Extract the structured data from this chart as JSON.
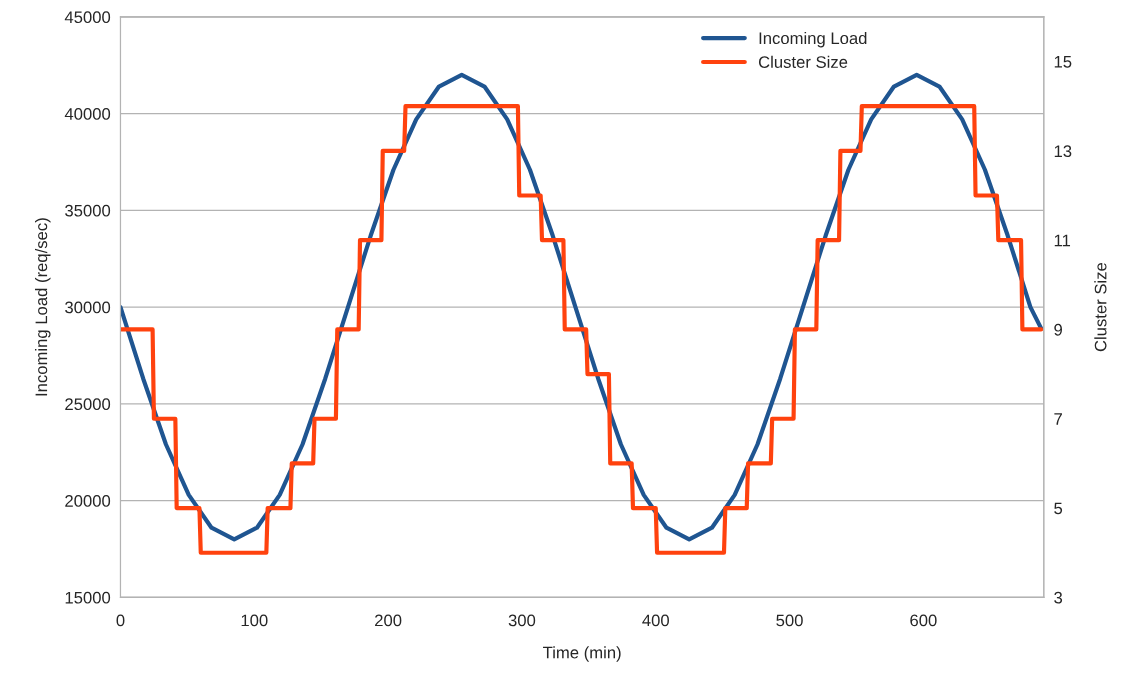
{
  "chart_data": {
    "type": "line",
    "xlabel": "Time (min)",
    "ylabel": "Incoming Load (req/sec)",
    "y2label": "Cluster Size",
    "xlim": [
      0,
      690
    ],
    "xticks": [
      0,
      100,
      200,
      300,
      400,
      500,
      600
    ],
    "ylim": [
      15000,
      45000
    ],
    "yticks": [
      15000,
      20000,
      25000,
      30000,
      35000,
      40000,
      45000
    ],
    "y2lim": [
      3,
      16
    ],
    "y2ticks": [
      3,
      5,
      7,
      9,
      11,
      13,
      15
    ],
    "grid": "y",
    "legend": "top",
    "line_style": "solid",
    "marker": "none",
    "series": [
      {
        "name": "Incoming Load",
        "color": "#1f5591",
        "x": [
          0,
          17,
          34,
          51,
          68,
          85,
          102,
          119,
          136,
          153,
          170,
          187,
          204,
          221,
          238,
          255,
          272,
          289,
          306,
          323,
          340,
          357,
          374,
          391,
          408,
          425,
          442,
          459,
          476,
          493,
          510,
          527,
          544,
          561,
          578,
          595,
          612,
          629,
          646,
          663,
          680,
          688
        ],
        "values": [
          30000,
          26300,
          22900,
          20300,
          18600,
          18000,
          18600,
          20300,
          22900,
          26300,
          30000,
          33700,
          37100,
          39700,
          41400,
          42000,
          41400,
          39700,
          37100,
          33700,
          30000,
          26300,
          22900,
          20300,
          18600,
          18000,
          18600,
          20300,
          22900,
          26300,
          30000,
          33700,
          37100,
          39700,
          41400,
          42000,
          41400,
          39700,
          37100,
          33700,
          30000,
          28900
        ]
      },
      {
        "name": "Cluster Size",
        "axis": "y2",
        "color": "#ff420e",
        "x": [
          0,
          24,
          25,
          41,
          42,
          59,
          60,
          109,
          110,
          127,
          128,
          144,
          145,
          161,
          162,
          178,
          179,
          195,
          196,
          212,
          213,
          297,
          298,
          314,
          315,
          331,
          332,
          348,
          349,
          365,
          366,
          382,
          383,
          400,
          401,
          451,
          452,
          468,
          469,
          486,
          487,
          503,
          504,
          520,
          521,
          537,
          538,
          553,
          554,
          638,
          639,
          655,
          656,
          673,
          674,
          688
        ],
        "values": [
          9,
          9,
          7,
          7,
          5,
          5,
          4,
          4,
          5,
          5,
          6,
          6,
          7,
          7,
          9,
          9,
          11,
          11,
          13,
          13,
          14,
          14,
          12,
          12,
          11,
          11,
          9,
          9,
          8,
          8,
          6,
          6,
          5,
          5,
          4,
          4,
          5,
          5,
          6,
          6,
          7,
          7,
          9,
          9,
          11,
          11,
          13,
          13,
          14,
          14,
          12,
          12,
          11,
          11,
          9,
          9
        ]
      }
    ]
  }
}
